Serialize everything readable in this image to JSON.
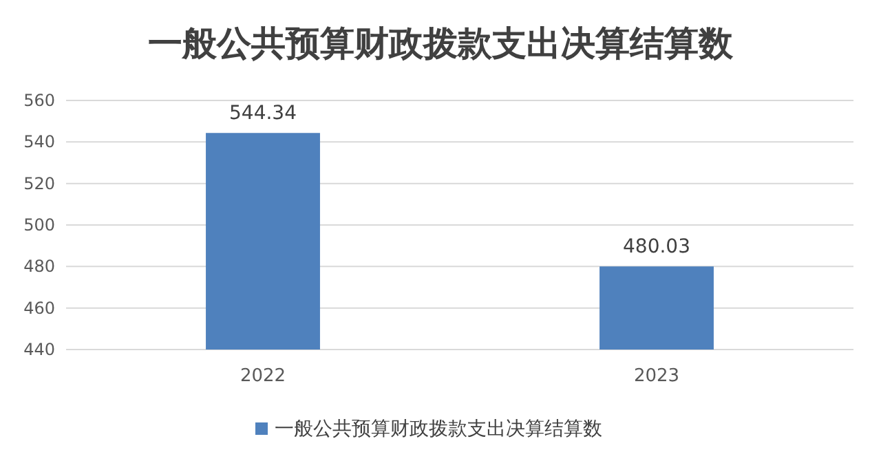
{
  "chart_data": {
    "type": "bar",
    "title": "一般公共预算财政拨款支出决算结算数",
    "categories": [
      "2022",
      "2023"
    ],
    "series": [
      {
        "name": "一般公共预算财政拨款支出决算结算数",
        "color": "#4f81bd",
        "values": [
          544.34,
          480.03
        ]
      }
    ],
    "ylim": [
      440,
      560
    ],
    "yticks": [
      440,
      460,
      480,
      500,
      520,
      540,
      560
    ],
    "grid": "y",
    "legend": "bottom",
    "data_labels": true
  }
}
